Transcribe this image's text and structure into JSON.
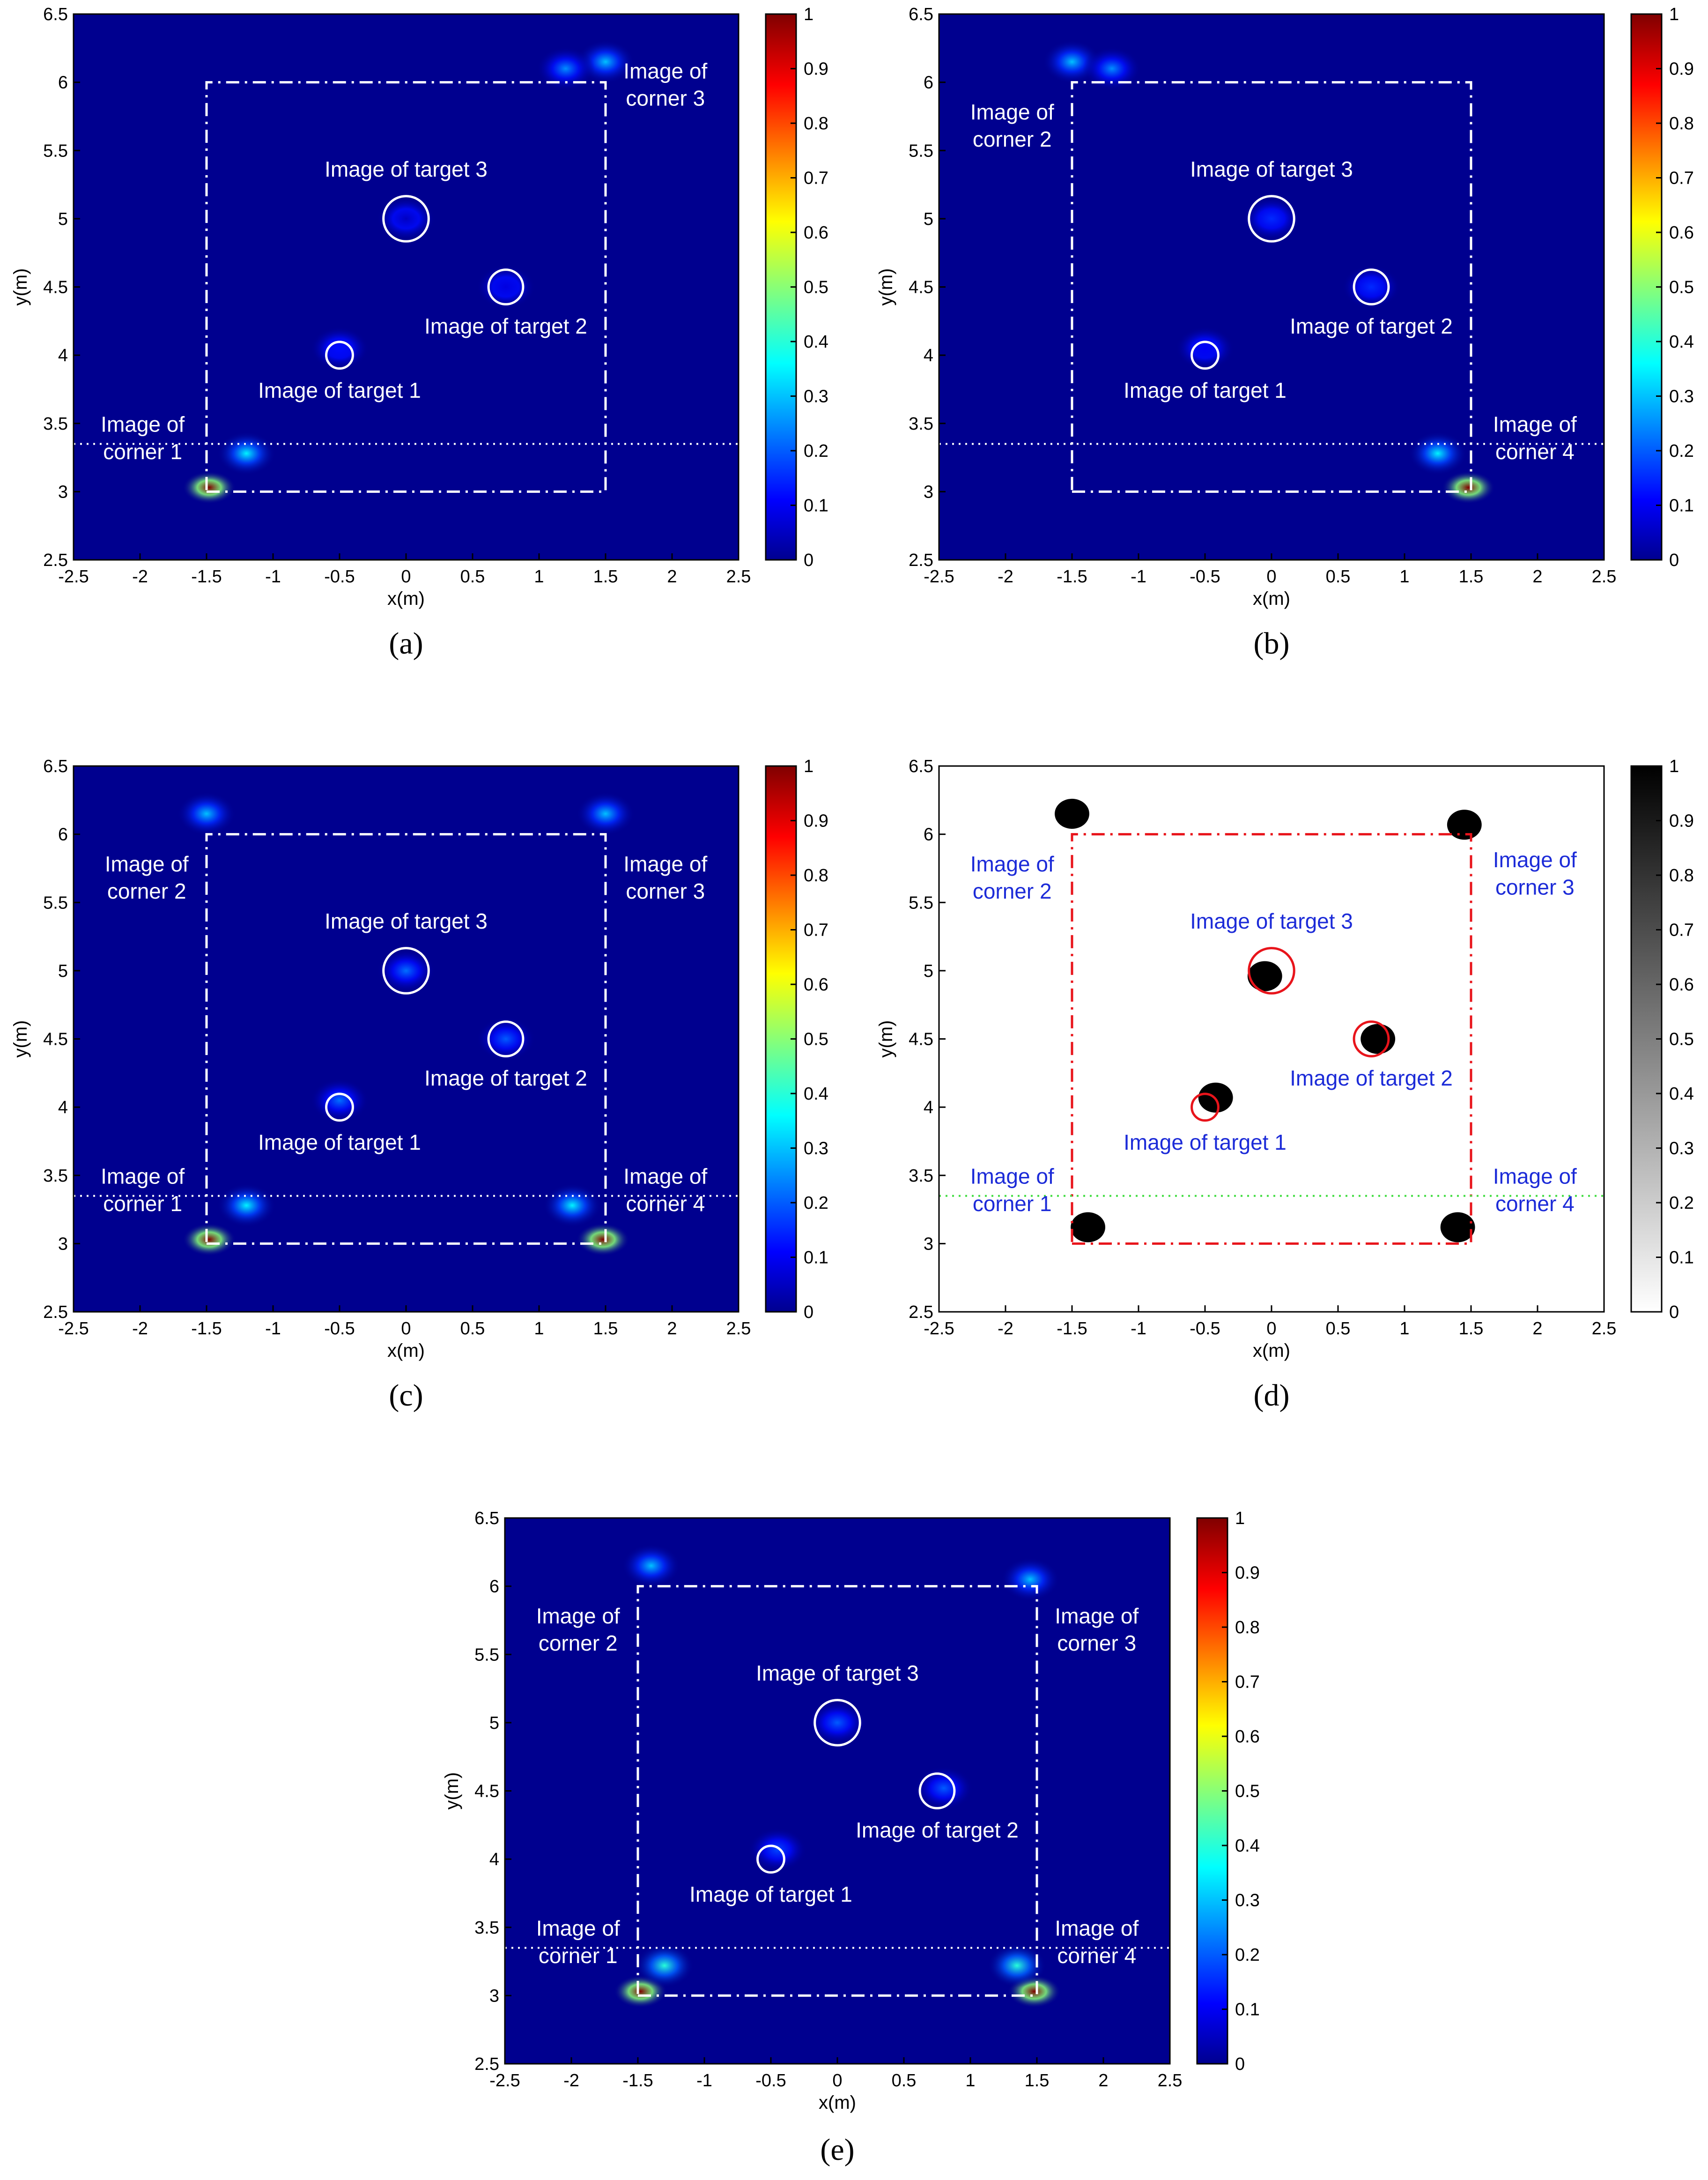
{
  "colors": {
    "jet_background": "#00008f",
    "overlay_white": "#ffffff",
    "overlay_red": "#e8141b",
    "annotation_blue": "#1c2bd8",
    "divider_green": "#3fdc3f",
    "binary_black": "#000000"
  },
  "chart_data": [
    {
      "id": "a",
      "type": "heatmap",
      "panel_label": "(a)",
      "colormap": "jet",
      "xlabel": "x(m)",
      "ylabel": "y(m)",
      "xlim": [
        -2.5,
        2.5
      ],
      "ylim": [
        2.5,
        6.5
      ],
      "x_ticks": [
        "-2.5",
        "-2",
        "-1.5",
        "-1",
        "-0.5",
        "0",
        "0.5",
        "1",
        "1.5",
        "2",
        "2.5"
      ],
      "y_ticks": [
        "2.5",
        "3",
        "3.5",
        "4",
        "4.5",
        "5",
        "5.5",
        "6",
        "6.5"
      ],
      "colorbar_ticks": [
        "0",
        "0.1",
        "0.2",
        "0.3",
        "0.4",
        "0.5",
        "0.6",
        "0.7",
        "0.8",
        "0.9",
        "1"
      ],
      "colorbar_range": [
        0,
        1
      ],
      "room_outline": [
        [
          -1.5,
          3
        ],
        [
          1.5,
          3
        ],
        [
          1.5,
          6
        ],
        [
          -1.5,
          6
        ]
      ],
      "divider_y": 3.35,
      "blobs": [
        {
          "x": -1.48,
          "y": 3.03,
          "value": 1.0
        },
        {
          "x": -1.2,
          "y": 3.28,
          "value": 0.35
        },
        {
          "x": 1.5,
          "y": 6.15,
          "value": 0.3
        },
        {
          "x": 1.2,
          "y": 6.1,
          "value": 0.25
        },
        {
          "x": -0.5,
          "y": 4.05,
          "value": 0.12
        },
        {
          "x": 0.75,
          "y": 4.5,
          "value": 0.08
        },
        {
          "x": 0.0,
          "y": 5.0,
          "value": 0.05
        }
      ],
      "targets": [
        {
          "x": -0.5,
          "y": 4.0,
          "r": 0.1
        },
        {
          "x": 0.75,
          "y": 4.5,
          "r": 0.13
        },
        {
          "x": 0.0,
          "y": 5.0,
          "r": 0.17
        }
      ],
      "annotations": [
        {
          "text": "Image of target 3",
          "x": 0.0,
          "y": 5.35
        },
        {
          "text": "Image of target 2",
          "x": 0.75,
          "y": 4.2
        },
        {
          "text": "Image of target 1",
          "x": -0.5,
          "y": 3.73
        },
        {
          "text": "Image of",
          "x": -1.98,
          "y": 3.48
        },
        {
          "text": "corner 1",
          "x": -1.98,
          "y": 3.28
        },
        {
          "text": "Image of",
          "x": 1.95,
          "y": 6.07
        },
        {
          "text": "corner 3",
          "x": 1.95,
          "y": 5.87
        }
      ]
    },
    {
      "id": "b",
      "type": "heatmap",
      "panel_label": "(b)",
      "colormap": "jet",
      "xlabel": "x(m)",
      "ylabel": "y(m)",
      "xlim": [
        -2.5,
        2.5
      ],
      "ylim": [
        2.5,
        6.5
      ],
      "x_ticks": [
        "-2.5",
        "-2",
        "-1.5",
        "-1",
        "-0.5",
        "0",
        "0.5",
        "1",
        "1.5",
        "2",
        "2.5"
      ],
      "y_ticks": [
        "2.5",
        "3",
        "3.5",
        "4",
        "4.5",
        "5",
        "5.5",
        "6",
        "6.5"
      ],
      "colorbar_ticks": [
        "0",
        "0.1",
        "0.2",
        "0.3",
        "0.4",
        "0.5",
        "0.6",
        "0.7",
        "0.8",
        "0.9",
        "1"
      ],
      "colorbar_range": [
        0,
        1
      ],
      "room_outline": [
        [
          -1.5,
          3
        ],
        [
          1.5,
          3
        ],
        [
          1.5,
          6
        ],
        [
          -1.5,
          6
        ]
      ],
      "divider_y": 3.35,
      "blobs": [
        {
          "x": 1.48,
          "y": 3.03,
          "value": 1.0
        },
        {
          "x": 1.25,
          "y": 3.28,
          "value": 0.35
        },
        {
          "x": -1.5,
          "y": 6.15,
          "value": 0.3
        },
        {
          "x": -1.2,
          "y": 6.1,
          "value": 0.25
        },
        {
          "x": -0.5,
          "y": 4.05,
          "value": 0.1
        },
        {
          "x": 0.75,
          "y": 4.5,
          "value": 0.15
        },
        {
          "x": 0.0,
          "y": 5.0,
          "value": 0.15
        }
      ],
      "targets": [
        {
          "x": -0.5,
          "y": 4.0,
          "r": 0.1
        },
        {
          "x": 0.75,
          "y": 4.5,
          "r": 0.13
        },
        {
          "x": 0.0,
          "y": 5.0,
          "r": 0.17
        }
      ],
      "annotations": [
        {
          "text": "Image of target 3",
          "x": 0.0,
          "y": 5.35
        },
        {
          "text": "Image of target 2",
          "x": 0.75,
          "y": 4.2
        },
        {
          "text": "Image of target 1",
          "x": -0.5,
          "y": 3.73
        },
        {
          "text": "Image of",
          "x": -1.95,
          "y": 5.77
        },
        {
          "text": "corner 2",
          "x": -1.95,
          "y": 5.57
        },
        {
          "text": "Image of",
          "x": 1.98,
          "y": 3.48
        },
        {
          "text": "corner 4",
          "x": 1.98,
          "y": 3.28
        }
      ]
    },
    {
      "id": "c",
      "type": "heatmap",
      "panel_label": "(c)",
      "colormap": "jet",
      "xlabel": "x(m)",
      "ylabel": "y(m)",
      "xlim": [
        -2.5,
        2.5
      ],
      "ylim": [
        2.5,
        6.5
      ],
      "x_ticks": [
        "-2.5",
        "-2",
        "-1.5",
        "-1",
        "-0.5",
        "0",
        "0.5",
        "1",
        "1.5",
        "2",
        "2.5"
      ],
      "y_ticks": [
        "2.5",
        "3",
        "3.5",
        "4",
        "4.5",
        "5",
        "5.5",
        "6",
        "6.5"
      ],
      "colorbar_ticks": [
        "0",
        "0.1",
        "0.2",
        "0.3",
        "0.4",
        "0.5",
        "0.6",
        "0.7",
        "0.8",
        "0.9",
        "1"
      ],
      "colorbar_range": [
        0,
        1
      ],
      "room_outline": [
        [
          -1.5,
          3
        ],
        [
          1.5,
          3
        ],
        [
          1.5,
          6
        ],
        [
          -1.5,
          6
        ]
      ],
      "divider_y": 3.35,
      "blobs": [
        {
          "x": -1.48,
          "y": 3.03,
          "value": 1.0
        },
        {
          "x": 1.48,
          "y": 3.03,
          "value": 1.0
        },
        {
          "x": -1.2,
          "y": 3.28,
          "value": 0.35
        },
        {
          "x": 1.25,
          "y": 3.28,
          "value": 0.35
        },
        {
          "x": -1.5,
          "y": 6.15,
          "value": 0.3
        },
        {
          "x": 1.5,
          "y": 6.15,
          "value": 0.3
        },
        {
          "x": -0.5,
          "y": 4.05,
          "value": 0.22
        },
        {
          "x": 0.75,
          "y": 4.5,
          "value": 0.2
        },
        {
          "x": 0.0,
          "y": 5.0,
          "value": 0.22
        }
      ],
      "targets": [
        {
          "x": -0.5,
          "y": 4.0,
          "r": 0.1
        },
        {
          "x": 0.75,
          "y": 4.5,
          "r": 0.13
        },
        {
          "x": 0.0,
          "y": 5.0,
          "r": 0.17
        }
      ],
      "annotations": [
        {
          "text": "Image of target 3",
          "x": 0.0,
          "y": 5.35
        },
        {
          "text": "Image of target 2",
          "x": 0.75,
          "y": 4.2
        },
        {
          "text": "Image of target 1",
          "x": -0.5,
          "y": 3.73
        },
        {
          "text": "Image of",
          "x": -1.95,
          "y": 5.77
        },
        {
          "text": "corner 2",
          "x": -1.95,
          "y": 5.57
        },
        {
          "text": "Image of",
          "x": 1.95,
          "y": 5.77
        },
        {
          "text": "corner 3",
          "x": 1.95,
          "y": 5.57
        },
        {
          "text": "Image of",
          "x": -1.98,
          "y": 3.48
        },
        {
          "text": "corner 1",
          "x": -1.98,
          "y": 3.28
        },
        {
          "text": "Image of",
          "x": 1.95,
          "y": 3.48
        },
        {
          "text": "corner 4",
          "x": 1.95,
          "y": 3.28
        }
      ]
    },
    {
      "id": "d",
      "type": "heatmap",
      "panel_label": "(d)",
      "colormap": "gray",
      "xlabel": "x(m)",
      "ylabel": "y(m)",
      "xlim": [
        -2.5,
        2.5
      ],
      "ylim": [
        2.5,
        6.5
      ],
      "x_ticks": [
        "-2.5",
        "-2",
        "-1.5",
        "-1",
        "-0.5",
        "0",
        "0.5",
        "1",
        "1.5",
        "2",
        "2.5"
      ],
      "y_ticks": [
        "2.5",
        "3",
        "3.5",
        "4",
        "4.5",
        "5",
        "5.5",
        "6",
        "6.5"
      ],
      "colorbar_ticks": [
        "0",
        "0.1",
        "0.2",
        "0.3",
        "0.4",
        "0.5",
        "0.6",
        "0.7",
        "0.8",
        "0.9",
        "1"
      ],
      "colorbar_range": [
        0,
        1
      ],
      "room_outline": [
        [
          -1.5,
          3
        ],
        [
          1.5,
          3
        ],
        [
          1.5,
          6
        ],
        [
          -1.5,
          6
        ]
      ],
      "divider_y": 3.35,
      "blobs": [
        {
          "x": -1.38,
          "y": 3.12,
          "value": 1
        },
        {
          "x": 1.4,
          "y": 3.12,
          "value": 1
        },
        {
          "x": -1.5,
          "y": 6.15,
          "value": 1
        },
        {
          "x": 1.45,
          "y": 6.07,
          "value": 1
        },
        {
          "x": -0.42,
          "y": 4.07,
          "value": 1
        },
        {
          "x": 0.8,
          "y": 4.5,
          "value": 1
        },
        {
          "x": -0.05,
          "y": 4.96,
          "value": 1
        }
      ],
      "targets": [
        {
          "x": -0.5,
          "y": 4.0,
          "r": 0.1
        },
        {
          "x": 0.75,
          "y": 4.5,
          "r": 0.13
        },
        {
          "x": 0.0,
          "y": 5.0,
          "r": 0.17
        }
      ],
      "annotations": [
        {
          "text": "Image of target 3",
          "x": 0.0,
          "y": 5.35
        },
        {
          "text": "Image of target 2",
          "x": 0.75,
          "y": 4.2
        },
        {
          "text": "Image of target 1",
          "x": -0.5,
          "y": 3.73
        },
        {
          "text": "Image of",
          "x": -1.95,
          "y": 5.77
        },
        {
          "text": "corner 2",
          "x": -1.95,
          "y": 5.57
        },
        {
          "text": "Image of",
          "x": 1.98,
          "y": 5.8
        },
        {
          "text": "corner 3",
          "x": 1.98,
          "y": 5.6
        },
        {
          "text": "Image of",
          "x": -1.95,
          "y": 3.48
        },
        {
          "text": "corner 1",
          "x": -1.95,
          "y": 3.28
        },
        {
          "text": "Image of",
          "x": 1.98,
          "y": 3.48
        },
        {
          "text": "corner 4",
          "x": 1.98,
          "y": 3.28
        }
      ]
    },
    {
      "id": "e",
      "type": "heatmap",
      "panel_label": "(e)",
      "colormap": "jet",
      "xlabel": "x(m)",
      "ylabel": "y(m)",
      "xlim": [
        -2.5,
        2.5
      ],
      "ylim": [
        2.5,
        6.5
      ],
      "x_ticks": [
        "-2.5",
        "-2",
        "-1.5",
        "-1",
        "-0.5",
        "0",
        "0.5",
        "1",
        "1.5",
        "2",
        "2.5"
      ],
      "y_ticks": [
        "2.5",
        "3",
        "3.5",
        "4",
        "4.5",
        "5",
        "5.5",
        "6",
        "6.5"
      ],
      "colorbar_ticks": [
        "0",
        "0.1",
        "0.2",
        "0.3",
        "0.4",
        "0.5",
        "0.6",
        "0.7",
        "0.8",
        "0.9",
        "1"
      ],
      "colorbar_range": [
        0,
        1
      ],
      "room_outline": [
        [
          -1.5,
          3
        ],
        [
          1.5,
          3
        ],
        [
          1.5,
          6
        ],
        [
          -1.5,
          6
        ]
      ],
      "divider_y": 3.35,
      "blobs": [
        {
          "x": -1.48,
          "y": 3.03,
          "value": 1.0
        },
        {
          "x": 1.48,
          "y": 3.03,
          "value": 1.0
        },
        {
          "x": -1.3,
          "y": 3.22,
          "value": 0.4
        },
        {
          "x": 1.35,
          "y": 3.22,
          "value": 0.4
        },
        {
          "x": -1.4,
          "y": 6.15,
          "value": 0.3
        },
        {
          "x": 1.45,
          "y": 6.05,
          "value": 0.3
        },
        {
          "x": -0.45,
          "y": 4.07,
          "value": 0.18
        },
        {
          "x": 0.8,
          "y": 4.52,
          "value": 0.2
        },
        {
          "x": 0.0,
          "y": 5.0,
          "value": 0.2
        }
      ],
      "targets": [
        {
          "x": -0.5,
          "y": 4.0,
          "r": 0.1
        },
        {
          "x": 0.75,
          "y": 4.5,
          "r": 0.13
        },
        {
          "x": 0.0,
          "y": 5.0,
          "r": 0.17
        }
      ],
      "annotations": [
        {
          "text": "Image of target 3",
          "x": 0.0,
          "y": 5.35
        },
        {
          "text": "Image of target 2",
          "x": 0.75,
          "y": 4.2
        },
        {
          "text": "Image of target 1",
          "x": -0.5,
          "y": 3.73
        },
        {
          "text": "Image of",
          "x": -1.95,
          "y": 5.77
        },
        {
          "text": "corner 2",
          "x": -1.95,
          "y": 5.57
        },
        {
          "text": "Image of",
          "x": 1.95,
          "y": 5.77
        },
        {
          "text": "corner 3",
          "x": 1.95,
          "y": 5.57
        },
        {
          "text": "Image of",
          "x": -1.95,
          "y": 3.48
        },
        {
          "text": "corner 1",
          "x": -1.95,
          "y": 3.28
        },
        {
          "text": "Image of",
          "x": 1.95,
          "y": 3.48
        },
        {
          "text": "corner 4",
          "x": 1.95,
          "y": 3.28
        }
      ]
    }
  ]
}
